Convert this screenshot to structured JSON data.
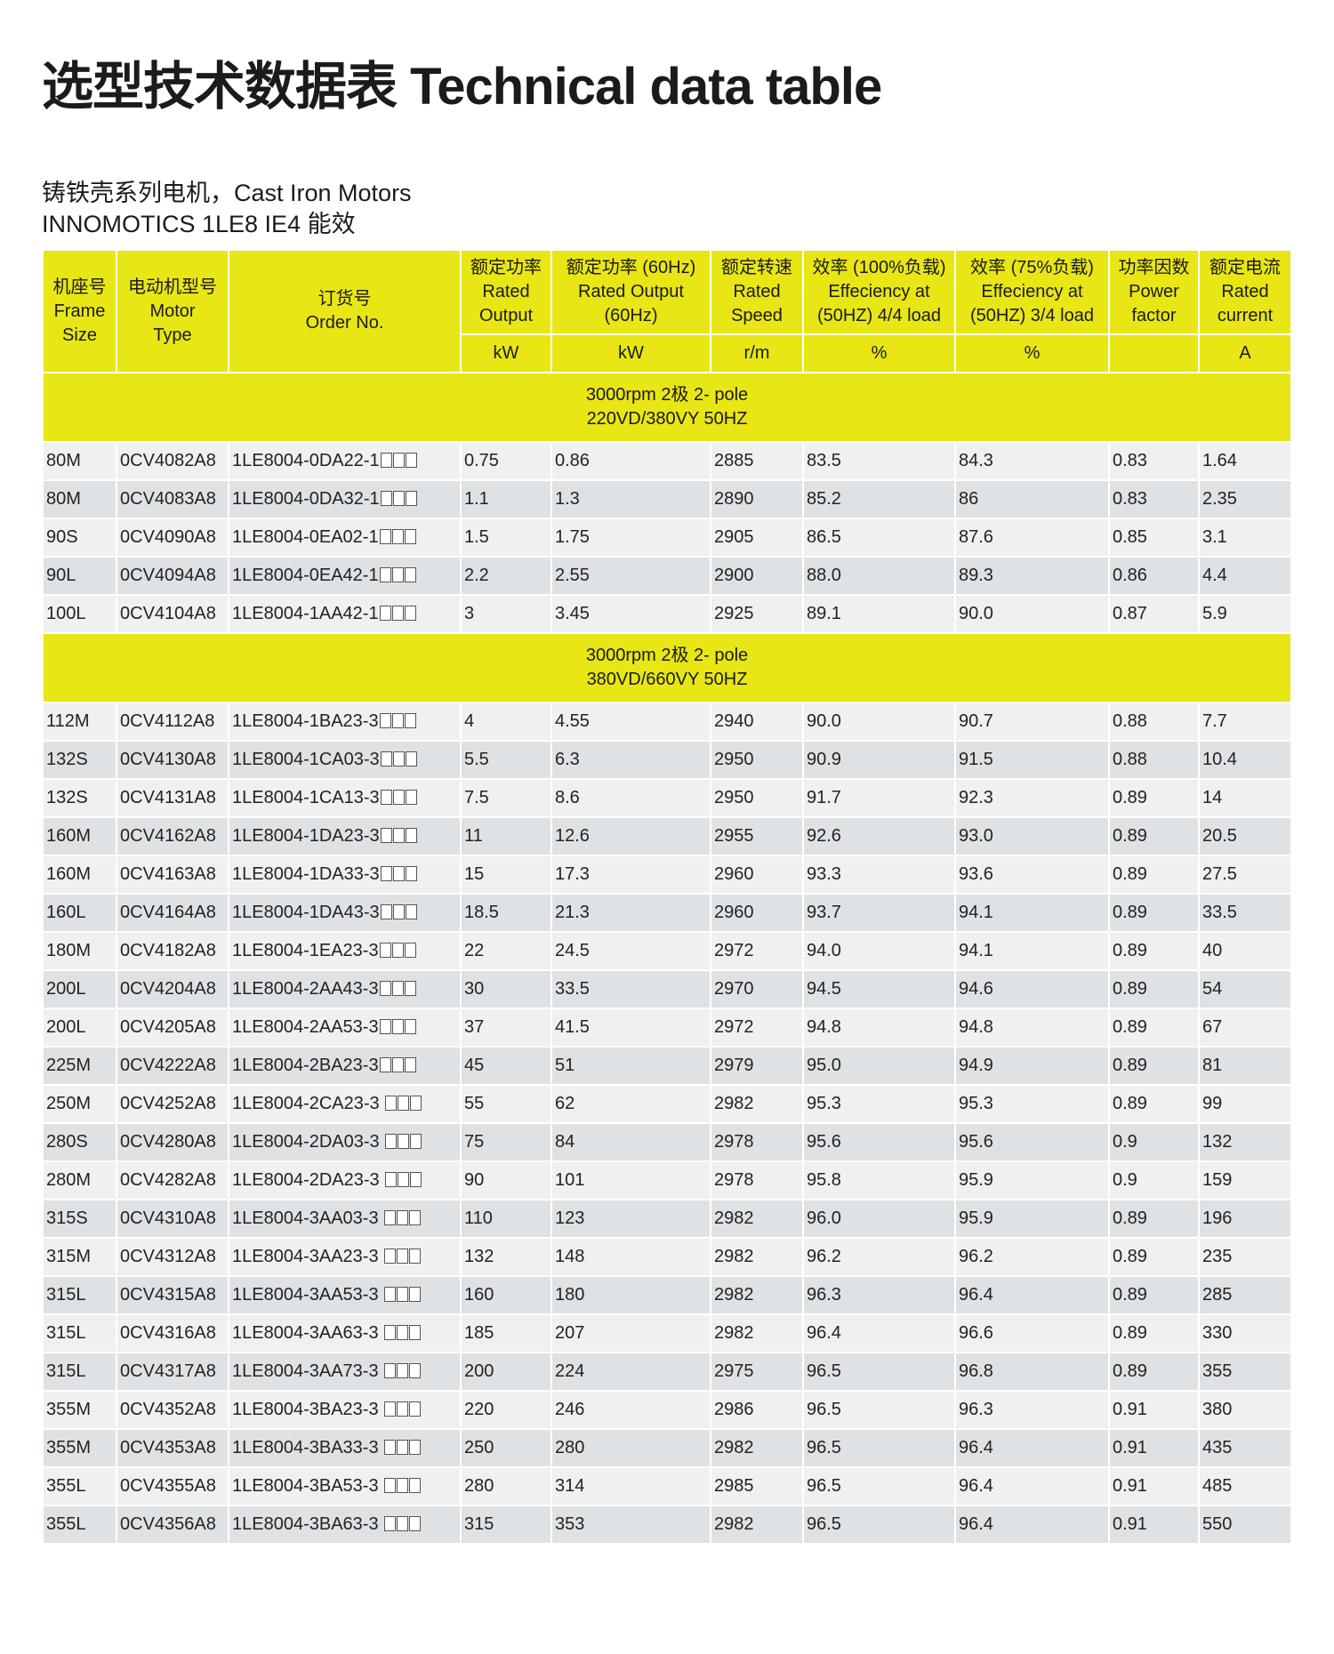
{
  "title": "选型技术数据表 Technical data table",
  "subtitle_line1": "铸铁壳系列电机，Cast Iron Motors",
  "subtitle_line2": "INNOMOTICS 1LE8 IE4 能效",
  "colors": {
    "accent_yellow": "#e8e614",
    "row_light": "#eef0f2",
    "row_dark": "#dfe2e5"
  },
  "headers": [
    {
      "zh": "机座号",
      "en1": "Frame",
      "en2": "Size",
      "unit": null
    },
    {
      "zh": "电动机型号",
      "en1": "Motor",
      "en2": "Type",
      "unit": null
    },
    {
      "zh": "订货号",
      "en1": "Order No.",
      "en2": "",
      "unit": null
    },
    {
      "zh": "额定功率",
      "en1": "Rated",
      "en2": "Output",
      "unit": "kW"
    },
    {
      "zh": "额定功率 (60Hz)",
      "en1": "Rated Output",
      "en2": "(60Hz)",
      "unit": "kW"
    },
    {
      "zh": "额定转速",
      "en1": "Rated",
      "en2": "Speed",
      "unit": "r/m"
    },
    {
      "zh": "效率 (100%负载)",
      "en1": "Effeciency at",
      "en2": "(50HZ) 4/4 load",
      "unit": "%"
    },
    {
      "zh": "效率 (75%负载)",
      "en1": "Effeciency at",
      "en2": "(50HZ) 3/4 load",
      "unit": "%"
    },
    {
      "zh": "功率因数",
      "en1": "Power",
      "en2": "factor",
      "unit": ""
    },
    {
      "zh": "额定电流",
      "en1": "Rated",
      "en2": "current",
      "unit": "A"
    }
  ],
  "order_placeholder_boxes": "□□□",
  "sections": [
    {
      "line1": "3000rpm 2极 2- pole",
      "line2": "220VD/380VY  50HZ",
      "rows": [
        [
          "80M",
          "0CV4082A8",
          "1LE8004-0DA22-1",
          "0.75",
          "0.86",
          "2885",
          "83.5",
          "84.3",
          "0.83",
          "1.64"
        ],
        [
          "80M",
          "0CV4083A8",
          "1LE8004-0DA32-1",
          "1.1",
          "1.3",
          "2890",
          "85.2",
          "86",
          "0.83",
          "2.35"
        ],
        [
          "90S",
          "0CV4090A8",
          "1LE8004-0EA02-1",
          "1.5",
          "1.75",
          "2905",
          "86.5",
          "87.6",
          "0.85",
          "3.1"
        ],
        [
          "90L",
          "0CV4094A8",
          "1LE8004-0EA42-1",
          "2.2",
          "2.55",
          "2900",
          "88.0",
          "89.3",
          "0.86",
          "4.4"
        ],
        [
          "100L",
          "0CV4104A8",
          "1LE8004-1AA42-1",
          "3",
          "3.45",
          "2925",
          "89.1",
          "90.0",
          "0.87",
          "5.9"
        ]
      ]
    },
    {
      "line1": "3000rpm 2极 2- pole",
      "line2": "380VD/660VY  50HZ",
      "rows": [
        [
          "112M",
          "0CV4112A8",
          "1LE8004-1BA23-3",
          "4",
          "4.55",
          "2940",
          "90.0",
          "90.7",
          "0.88",
          "7.7"
        ],
        [
          "132S",
          "0CV4130A8",
          "1LE8004-1CA03-3",
          "5.5",
          "6.3",
          "2950",
          "90.9",
          "91.5",
          "0.88",
          "10.4"
        ],
        [
          "132S",
          "0CV4131A8",
          "1LE8004-1CA13-3",
          "7.5",
          "8.6",
          "2950",
          "91.7",
          "92.3",
          "0.89",
          "14"
        ],
        [
          "160M",
          "0CV4162A8",
          "1LE8004-1DA23-3",
          "11",
          "12.6",
          "2955",
          "92.6",
          "93.0",
          "0.89",
          "20.5"
        ],
        [
          "160M",
          "0CV4163A8",
          "1LE8004-1DA33-3",
          "15",
          "17.3",
          "2960",
          "93.3",
          "93.6",
          "0.89",
          "27.5"
        ],
        [
          "160L",
          "0CV4164A8",
          "1LE8004-1DA43-3",
          "18.5",
          "21.3",
          "2960",
          "93.7",
          "94.1",
          "0.89",
          "33.5"
        ],
        [
          "180M",
          "0CV4182A8",
          "1LE8004-1EA23-3",
          "22",
          "24.5",
          "2972",
          "94.0",
          "94.1",
          "0.89",
          "40"
        ],
        [
          "200L",
          "0CV4204A8",
          "1LE8004-2AA43-3",
          "30",
          "33.5",
          "2970",
          "94.5",
          "94.6",
          "0.89",
          "54"
        ],
        [
          "200L",
          "0CV4205A8",
          "1LE8004-2AA53-3",
          "37",
          "41.5",
          "2972",
          "94.8",
          "94.8",
          "0.89",
          "67"
        ],
        [
          "225M",
          "0CV4222A8",
          "1LE8004-2BA23-3",
          "45",
          "51",
          "2979",
          "95.0",
          "94.9",
          "0.89",
          "81"
        ],
        [
          "250M",
          "0CV4252A8",
          "1LE8004-2CA23-3 ",
          "55",
          "62",
          "2982",
          "95.3",
          "95.3",
          "0.89",
          "99"
        ],
        [
          "280S",
          "0CV4280A8",
          "1LE8004-2DA03-3 ",
          "75",
          "84",
          "2978",
          "95.6",
          "95.6",
          "0.9",
          "132"
        ],
        [
          "280M",
          "0CV4282A8",
          "1LE8004-2DA23-3 ",
          "90",
          "101",
          "2978",
          "95.8",
          "95.9",
          "0.9",
          "159"
        ],
        [
          "315S",
          "0CV4310A8",
          "1LE8004-3AA03-3 ",
          "110",
          "123",
          "2982",
          "96.0",
          "95.9",
          "0.89",
          "196"
        ],
        [
          "315M",
          "0CV4312A8",
          "1LE8004-3AA23-3 ",
          "132",
          "148",
          "2982",
          "96.2",
          "96.2",
          "0.89",
          "235"
        ],
        [
          "315L",
          "0CV4315A8",
          "1LE8004-3AA53-3 ",
          "160",
          "180",
          "2982",
          "96.3",
          "96.4",
          "0.89",
          "285"
        ],
        [
          "315L",
          "0CV4316A8",
          "1LE8004-3AA63-3 ",
          "185",
          "207",
          "2982",
          "96.4",
          "96.6",
          "0.89",
          "330"
        ],
        [
          "315L",
          "0CV4317A8",
          "1LE8004-3AA73-3 ",
          "200",
          "224",
          "2975",
          "96.5",
          "96.8",
          "0.89",
          "355"
        ],
        [
          "355M",
          "0CV4352A8",
          "1LE8004-3BA23-3 ",
          "220",
          "246",
          "2986",
          "96.5",
          "96.3",
          "0.91",
          "380"
        ],
        [
          "355M",
          "0CV4353A8",
          "1LE8004-3BA33-3 ",
          "250",
          "280",
          "2982",
          "96.5",
          "96.4",
          "0.91",
          "435"
        ],
        [
          "355L",
          "0CV4355A8",
          "1LE8004-3BA53-3 ",
          "280",
          "314",
          "2985",
          "96.5",
          "96.4",
          "0.91",
          "485"
        ],
        [
          "355L",
          "0CV4356A8",
          "1LE8004-3BA63-3 ",
          "315",
          "353",
          "2982",
          "96.5",
          "96.4",
          "0.91",
          "550"
        ]
      ]
    }
  ]
}
